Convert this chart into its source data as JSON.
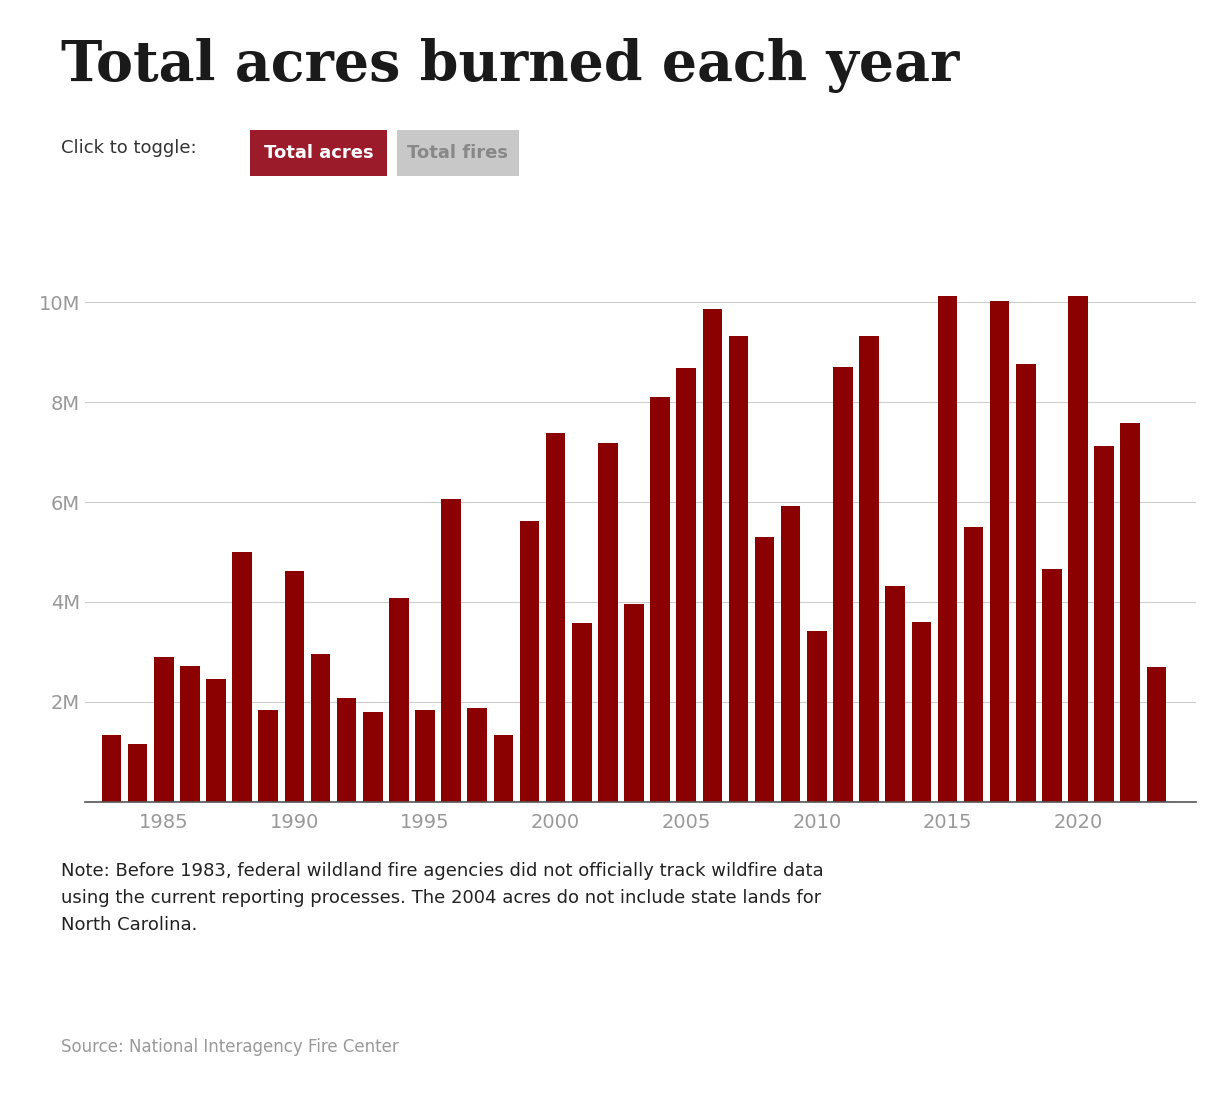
{
  "title": "Total acres burned each year",
  "toggle_label": "Click to toggle:",
  "toggle_active": "Total acres",
  "toggle_inactive": "Total fires",
  "bar_color": "#8B0000",
  "background_color": "#ffffff",
  "years": [
    1983,
    1984,
    1985,
    1986,
    1987,
    1988,
    1989,
    1990,
    1991,
    1992,
    1993,
    1994,
    1995,
    1996,
    1997,
    1998,
    1999,
    2000,
    2001,
    2002,
    2003,
    2004,
    2005,
    2006,
    2007,
    2008,
    2009,
    2010,
    2011,
    2012,
    2013,
    2014,
    2015,
    2016,
    2017,
    2018,
    2019,
    2020,
    2021,
    2022,
    2023
  ],
  "values": [
    1323666,
    1148409,
    2896147,
    2719162,
    2447296,
    5009290,
    1827310,
    4621621,
    2953578,
    2069929,
    1797574,
    4073579,
    1840546,
    6065998,
    1875990,
    1329704,
    5626093,
    7393493,
    3570911,
    7184712,
    3960842,
    8097880,
    8689389,
    9873745,
    9328045,
    5292468,
    5921786,
    3422724,
    8711367,
    9326238,
    4319546,
    3595613,
    10125149,
    5509995,
    10026086,
    8767492,
    4664364,
    10122336,
    7120066,
    7577183,
    2693910
  ],
  "ytick_values": [
    0,
    2000000,
    4000000,
    6000000,
    8000000,
    10000000
  ],
  "xtick_years": [
    1985,
    1990,
    1995,
    2000,
    2005,
    2010,
    2015,
    2020
  ],
  "ylim": [
    0,
    11000000
  ],
  "note_text": "Note: Before 1983, federal wildland fire agencies did not officially track wildfire data\nusing the current reporting processes. The 2004 acres do not include state lands for\nNorth Carolina.",
  "source_text": "Source: National Interagency Fire Center",
  "active_btn_color": "#9B1B2A",
  "inactive_btn_color": "#C8C8C8",
  "grid_color": "#CCCCCC"
}
